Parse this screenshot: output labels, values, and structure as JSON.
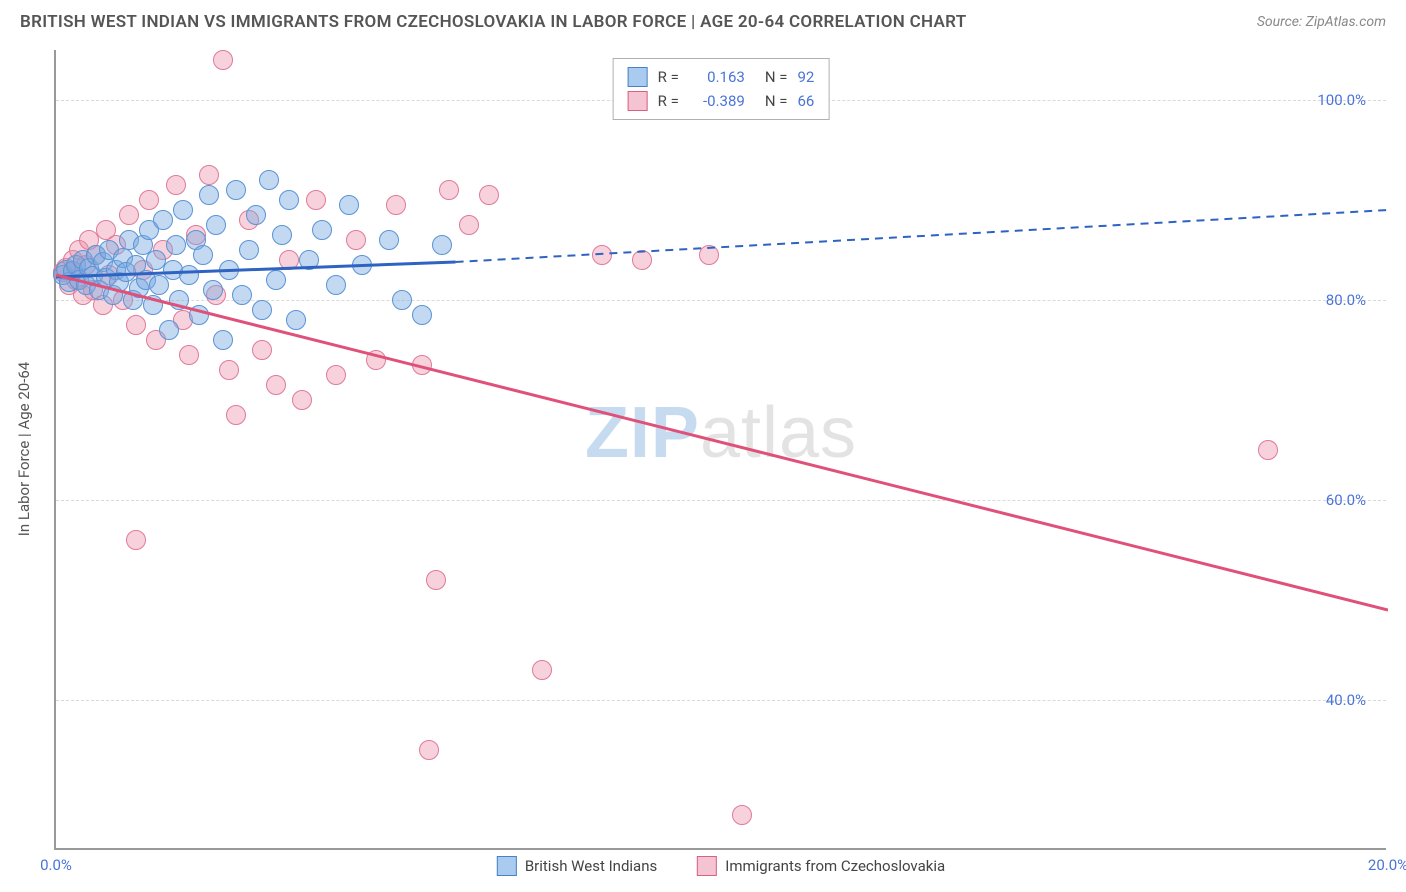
{
  "title": "BRITISH WEST INDIAN VS IMMIGRANTS FROM CZECHOSLOVAKIA IN LABOR FORCE | AGE 20-64 CORRELATION CHART",
  "source": "Source: ZipAtlas.com",
  "y_axis_title": "In Labor Force | Age 20-64",
  "watermark_zip": "ZIP",
  "watermark_atlas": "atlas",
  "chart": {
    "type": "scatter",
    "background_color": "#ffffff",
    "grid_color": "#d9d9d9",
    "axis_color": "#999999",
    "label_color": "#4a74d8",
    "xlim": [
      0,
      20
    ],
    "ylim": [
      25,
      105
    ],
    "x_ticks": [
      {
        "value": 0,
        "label": "0.0%"
      },
      {
        "value": 20,
        "label": "20.0%"
      }
    ],
    "y_ticks": [
      {
        "value": 40,
        "label": "40.0%"
      },
      {
        "value": 60,
        "label": "60.0%"
      },
      {
        "value": 80,
        "label": "80.0%"
      },
      {
        "value": 100,
        "label": "100.0%"
      }
    ],
    "series": [
      {
        "name": "British West Indians",
        "color_fill": "rgba(122,168,225,0.45)",
        "color_stroke": "#5a94d6",
        "swatch_fill": "#a9cbef",
        "swatch_border": "#4a80c7",
        "marker_radius": 10,
        "r_value": "0.163",
        "n_value": "92",
        "trend": {
          "solid_color": "#2e63c2",
          "dash_color": "#2e63c2",
          "solid": {
            "x1": 0,
            "y1": 82.3,
            "x2": 6,
            "y2": 83.8
          },
          "dash": {
            "x1": 6,
            "y1": 83.8,
            "x2": 20,
            "y2": 89.0
          }
        },
        "points": [
          {
            "x": 0.1,
            "y": 82.5
          },
          {
            "x": 0.15,
            "y": 83.0
          },
          {
            "x": 0.2,
            "y": 81.8
          },
          {
            "x": 0.25,
            "y": 82.9
          },
          {
            "x": 0.3,
            "y": 83.5
          },
          {
            "x": 0.35,
            "y": 82.0
          },
          {
            "x": 0.4,
            "y": 84.0
          },
          {
            "x": 0.45,
            "y": 81.5
          },
          {
            "x": 0.5,
            "y": 83.2
          },
          {
            "x": 0.55,
            "y": 82.4
          },
          {
            "x": 0.6,
            "y": 84.5
          },
          {
            "x": 0.65,
            "y": 81.0
          },
          {
            "x": 0.7,
            "y": 83.8
          },
          {
            "x": 0.75,
            "y": 82.2
          },
          {
            "x": 0.8,
            "y": 85.0
          },
          {
            "x": 0.85,
            "y": 80.5
          },
          {
            "x": 0.9,
            "y": 83.0
          },
          {
            "x": 0.95,
            "y": 81.8
          },
          {
            "x": 1.0,
            "y": 84.2
          },
          {
            "x": 1.05,
            "y": 82.8
          },
          {
            "x": 1.1,
            "y": 86.0
          },
          {
            "x": 1.15,
            "y": 80.0
          },
          {
            "x": 1.2,
            "y": 83.5
          },
          {
            "x": 1.25,
            "y": 81.2
          },
          {
            "x": 1.3,
            "y": 85.5
          },
          {
            "x": 1.35,
            "y": 82.0
          },
          {
            "x": 1.4,
            "y": 87.0
          },
          {
            "x": 1.45,
            "y": 79.5
          },
          {
            "x": 1.5,
            "y": 84.0
          },
          {
            "x": 1.55,
            "y": 81.5
          },
          {
            "x": 1.6,
            "y": 88.0
          },
          {
            "x": 1.7,
            "y": 77.0
          },
          {
            "x": 1.75,
            "y": 83.0
          },
          {
            "x": 1.8,
            "y": 85.5
          },
          {
            "x": 1.85,
            "y": 80.0
          },
          {
            "x": 1.9,
            "y": 89.0
          },
          {
            "x": 2.0,
            "y": 82.5
          },
          {
            "x": 2.1,
            "y": 86.0
          },
          {
            "x": 2.15,
            "y": 78.5
          },
          {
            "x": 2.2,
            "y": 84.5
          },
          {
            "x": 2.3,
            "y": 90.5
          },
          {
            "x": 2.35,
            "y": 81.0
          },
          {
            "x": 2.4,
            "y": 87.5
          },
          {
            "x": 2.5,
            "y": 76.0
          },
          {
            "x": 2.6,
            "y": 83.0
          },
          {
            "x": 2.7,
            "y": 91.0
          },
          {
            "x": 2.8,
            "y": 80.5
          },
          {
            "x": 2.9,
            "y": 85.0
          },
          {
            "x": 3.0,
            "y": 88.5
          },
          {
            "x": 3.1,
            "y": 79.0
          },
          {
            "x": 3.2,
            "y": 92.0
          },
          {
            "x": 3.3,
            "y": 82.0
          },
          {
            "x": 3.4,
            "y": 86.5
          },
          {
            "x": 3.5,
            "y": 90.0
          },
          {
            "x": 3.6,
            "y": 78.0
          },
          {
            "x": 3.8,
            "y": 84.0
          },
          {
            "x": 4.0,
            "y": 87.0
          },
          {
            "x": 4.2,
            "y": 81.5
          },
          {
            "x": 4.4,
            "y": 89.5
          },
          {
            "x": 4.6,
            "y": 83.5
          },
          {
            "x": 5.0,
            "y": 86.0
          },
          {
            "x": 5.2,
            "y": 80.0
          },
          {
            "x": 5.5,
            "y": 78.5
          },
          {
            "x": 5.8,
            "y": 85.5
          }
        ]
      },
      {
        "name": "Immigrants from Czechoslovakia",
        "color_fill": "rgba(236,142,168,0.40)",
        "color_stroke": "#e07a98",
        "swatch_fill": "#f4c4d3",
        "swatch_border": "#d95f86",
        "marker_radius": 10,
        "r_value": "-0.389",
        "n_value": "66",
        "trend": {
          "solid_color": "#e0517a",
          "dash_color": "#e0517a",
          "solid": {
            "x1": 0,
            "y1": 82.5,
            "x2": 20,
            "y2": 49.0
          },
          "dash": null
        },
        "points": [
          {
            "x": 0.1,
            "y": 82.8
          },
          {
            "x": 0.15,
            "y": 83.2
          },
          {
            "x": 0.2,
            "y": 81.5
          },
          {
            "x": 0.25,
            "y": 84.0
          },
          {
            "x": 0.3,
            "y": 82.0
          },
          {
            "x": 0.35,
            "y": 85.0
          },
          {
            "x": 0.4,
            "y": 80.5
          },
          {
            "x": 0.45,
            "y": 83.5
          },
          {
            "x": 0.5,
            "y": 86.0
          },
          {
            "x": 0.55,
            "y": 81.0
          },
          {
            "x": 0.6,
            "y": 84.5
          },
          {
            "x": 0.7,
            "y": 79.5
          },
          {
            "x": 0.75,
            "y": 87.0
          },
          {
            "x": 0.8,
            "y": 82.5
          },
          {
            "x": 0.9,
            "y": 85.5
          },
          {
            "x": 1.0,
            "y": 80.0
          },
          {
            "x": 1.1,
            "y": 88.5
          },
          {
            "x": 1.2,
            "y": 77.5
          },
          {
            "x": 1.3,
            "y": 83.0
          },
          {
            "x": 1.4,
            "y": 90.0
          },
          {
            "x": 1.5,
            "y": 76.0
          },
          {
            "x": 1.6,
            "y": 85.0
          },
          {
            "x": 1.8,
            "y": 91.5
          },
          {
            "x": 1.9,
            "y": 78.0
          },
          {
            "x": 2.0,
            "y": 74.5
          },
          {
            "x": 2.1,
            "y": 86.5
          },
          {
            "x": 2.3,
            "y": 92.5
          },
          {
            "x": 2.4,
            "y": 80.5
          },
          {
            "x": 2.6,
            "y": 73.0
          },
          {
            "x": 2.7,
            "y": 68.5
          },
          {
            "x": 2.9,
            "y": 88.0
          },
          {
            "x": 3.1,
            "y": 75.0
          },
          {
            "x": 3.3,
            "y": 71.5
          },
          {
            "x": 3.5,
            "y": 84.0
          },
          {
            "x": 3.7,
            "y": 70.0
          },
          {
            "x": 3.9,
            "y": 90.0
          },
          {
            "x": 4.2,
            "y": 72.5
          },
          {
            "x": 4.5,
            "y": 86.0
          },
          {
            "x": 4.8,
            "y": 74.0
          },
          {
            "x": 5.1,
            "y": 89.5
          },
          {
            "x": 5.5,
            "y": 73.5
          },
          {
            "x": 5.9,
            "y": 91.0
          },
          {
            "x": 6.2,
            "y": 87.5
          },
          {
            "x": 6.5,
            "y": 90.5
          },
          {
            "x": 2.5,
            "y": 104.0
          },
          {
            "x": 1.2,
            "y": 56.0
          },
          {
            "x": 5.7,
            "y": 52.0
          },
          {
            "x": 5.6,
            "y": 35.0
          },
          {
            "x": 7.3,
            "y": 43.0
          },
          {
            "x": 8.2,
            "y": 84.5
          },
          {
            "x": 8.8,
            "y": 84.0
          },
          {
            "x": 9.8,
            "y": 84.5
          },
          {
            "x": 10.3,
            "y": 28.5
          },
          {
            "x": 18.2,
            "y": 65.0
          }
        ]
      }
    ],
    "legend_top_labels": {
      "r": "R =",
      "n": "N ="
    },
    "legend_bottom": [
      {
        "label": "British West Indians",
        "series_index": 0
      },
      {
        "label": "Immigrants from Czechoslovakia",
        "series_index": 1
      }
    ]
  }
}
